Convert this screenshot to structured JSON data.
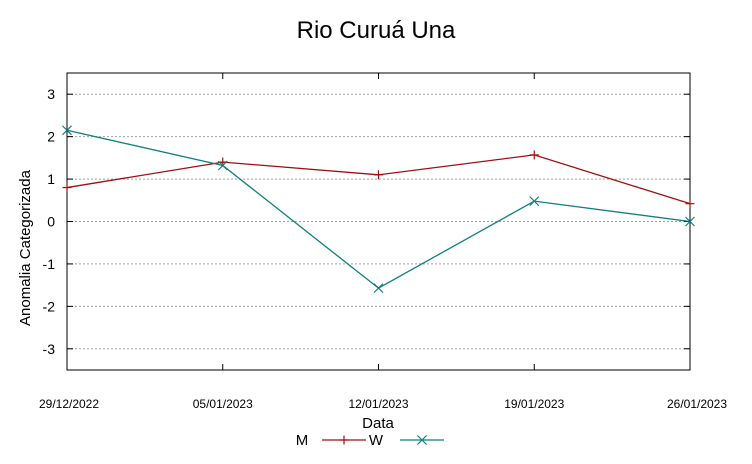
{
  "chart_data": {
    "type": "line",
    "title": "Rio Curuá Una",
    "xlabel": "Data",
    "ylabel": "Anomalia Categorizada",
    "categories": [
      "29/12/2022",
      "05/01/2023",
      "12/01/2023",
      "19/01/2023",
      "26/01/2023"
    ],
    "yticks": [
      "3",
      "2",
      "1",
      "0",
      "-1",
      "-2",
      "-3"
    ],
    "ylim": [
      -3.5,
      3.5
    ],
    "grid": true,
    "legend_position": "bottom-center",
    "series": [
      {
        "name": "M",
        "marker": "+",
        "color": "#a01010",
        "values": [
          0.8,
          1.4,
          1.1,
          1.57,
          0.42
        ]
      },
      {
        "name": "W",
        "marker": "x",
        "color": "#107f80",
        "values": [
          2.15,
          1.32,
          -1.57,
          0.48,
          0.0
        ]
      }
    ]
  }
}
